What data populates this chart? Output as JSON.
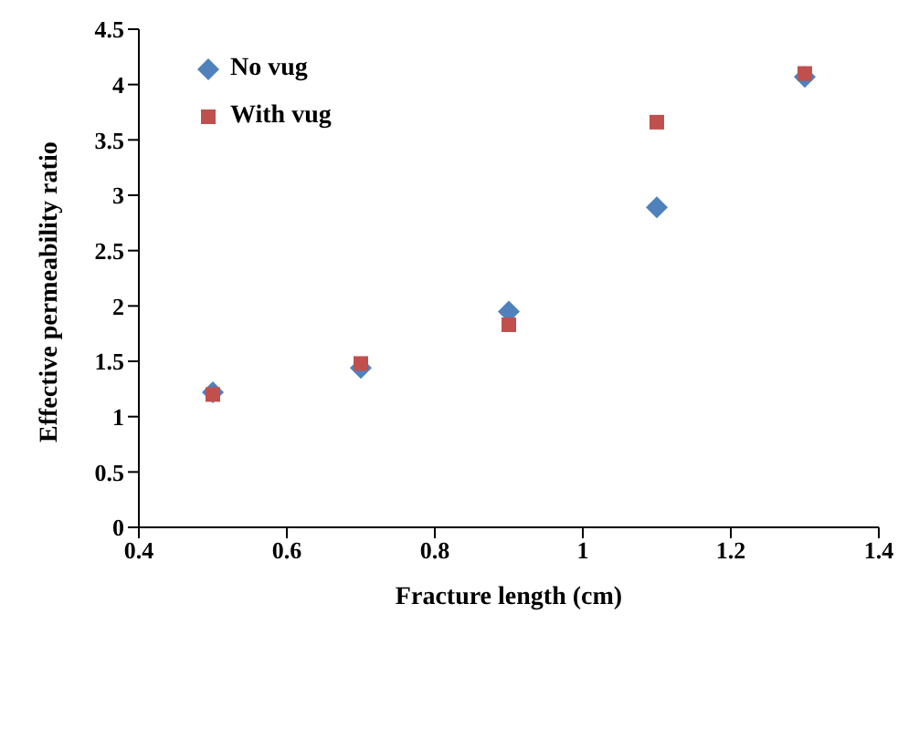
{
  "chart_data": {
    "type": "scatter",
    "xlabel": "Fracture length (cm)",
    "ylabel": "Effective permeability ratio",
    "x": [
      0.5,
      0.7,
      0.9,
      1.1,
      1.3
    ],
    "series": [
      {
        "name": "No vug",
        "color": "#4f81bd",
        "marker": "diamond",
        "values": [
          1.22,
          1.44,
          1.95,
          2.89,
          4.07
        ]
      },
      {
        "name": "With vug",
        "color": "#c0504d",
        "marker": "square",
        "values": [
          1.2,
          1.48,
          1.83,
          3.66,
          4.1
        ]
      }
    ],
    "xlim": [
      0.4,
      1.4
    ],
    "xticks": [
      0.4,
      0.6,
      0.8,
      1,
      1.2,
      1.4
    ],
    "ylim": [
      0,
      4.5
    ],
    "yticks": [
      0,
      0.5,
      1,
      1.5,
      2,
      2.5,
      3,
      3.5,
      4,
      4.5
    ],
    "grid": false,
    "legend": "top left"
  }
}
